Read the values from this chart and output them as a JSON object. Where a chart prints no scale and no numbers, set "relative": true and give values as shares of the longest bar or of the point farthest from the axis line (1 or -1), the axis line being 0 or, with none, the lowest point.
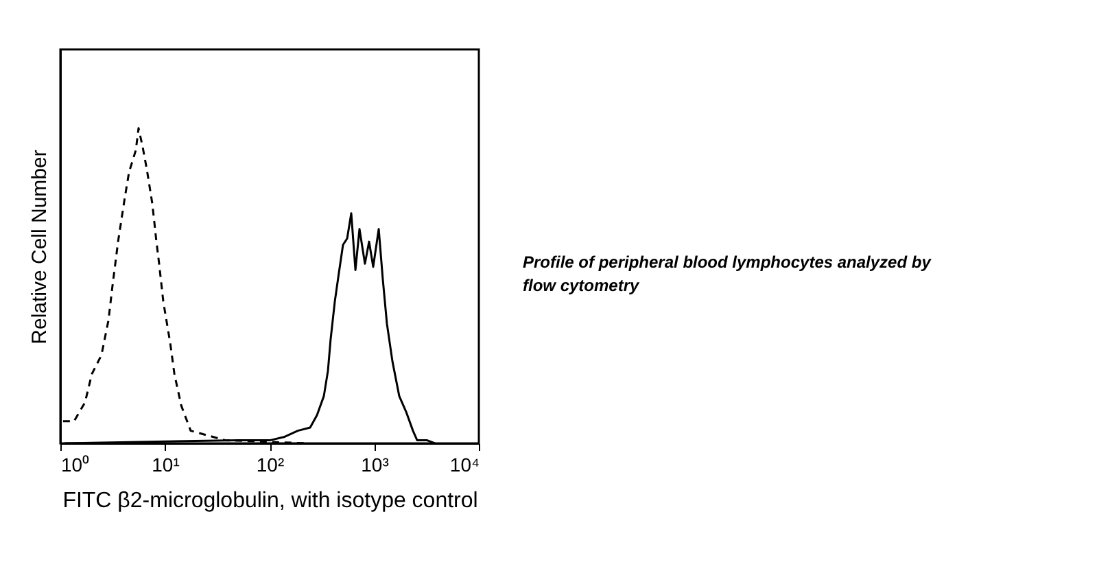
{
  "chart_data": {
    "type": "line",
    "relative": true,
    "log": "x",
    "grid": false,
    "marker": "none",
    "xlabel": "FITC β2-microglobulin, with isotype control",
    "ylabel": "Relative Cell Number",
    "xlim": [
      1,
      10000
    ],
    "xticks": [
      {
        "value": 1,
        "label": "10⁰"
      },
      {
        "value": 10,
        "label": "10¹"
      },
      {
        "value": 100,
        "label": "10²"
      },
      {
        "value": 1000,
        "label": "10³"
      },
      {
        "value": 10000,
        "label": "10⁴"
      }
    ],
    "annotations": [
      "Profile of peripheral blood lymphocytes analyzed by flow cytometry"
    ],
    "series": [
      {
        "color": "#000000",
        "line_style": "dashed",
        "x": [
          1.06,
          1.35,
          1.72,
          2.0,
          2.47,
          2.88,
          3.15,
          3.56,
          4.13,
          4.53,
          5.26,
          5.59,
          6.12,
          6.7,
          7.57,
          8.28,
          8.79,
          9.63,
          11.2,
          12.3,
          14.3,
          17.6,
          37.5,
          229
        ],
        "values": [
          0.07,
          0.07,
          0.13,
          0.22,
          0.28,
          0.39,
          0.5,
          0.64,
          0.78,
          0.86,
          0.93,
          1.0,
          0.94,
          0.87,
          0.76,
          0.64,
          0.57,
          0.45,
          0.32,
          0.22,
          0.12,
          0.04,
          0.01,
          0
        ]
      },
      {
        "color": "#000000",
        "line_style": "solid",
        "x": [
          1.1,
          50,
          102,
          137,
          186,
          244,
          284,
          330,
          361,
          383,
          420,
          459,
          503,
          551,
          603,
          661,
          723,
          815,
          893,
          977,
          1104,
          1208,
          1322,
          1493,
          1734,
          2018,
          2345,
          2569,
          3177,
          3802
        ],
        "values": [
          0,
          0.01,
          0.01,
          0.02,
          0.04,
          0.05,
          0.09,
          0.15,
          0.23,
          0.33,
          0.45,
          0.54,
          0.63,
          0.65,
          0.73,
          0.55,
          0.68,
          0.57,
          0.64,
          0.56,
          0.68,
          0.52,
          0.38,
          0.26,
          0.15,
          0.1,
          0.04,
          0.01,
          0.01,
          0
        ]
      }
    ]
  }
}
